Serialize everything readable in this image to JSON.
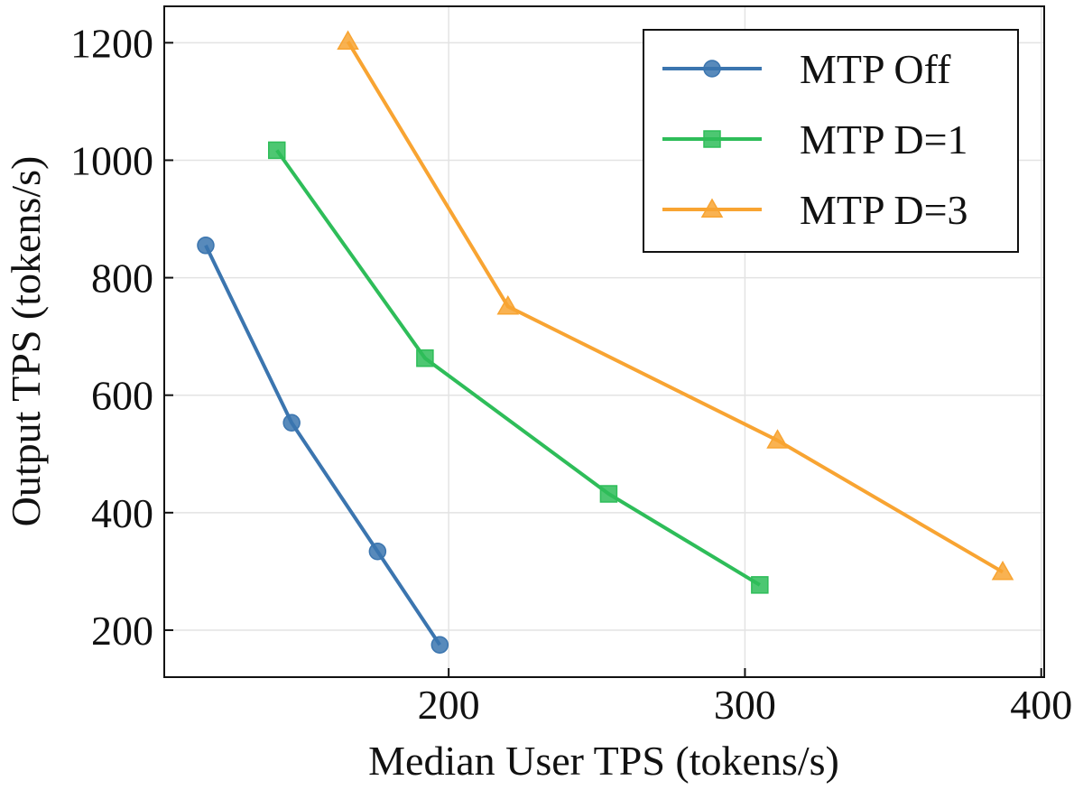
{
  "chart_data": {
    "type": "line",
    "title": "",
    "xlabel": "Median User TPS (tokens/s)",
    "ylabel": "Output TPS (tokens/s)",
    "xlim": [
      104,
      401
    ],
    "ylim": [
      120,
      1262
    ],
    "xticks": [
      200,
      300,
      400
    ],
    "yticks": [
      200,
      400,
      600,
      800,
      1000,
      1200
    ],
    "grid": true,
    "legend_position": "top-right",
    "series": [
      {
        "name": "MTP Off",
        "color": "#3b75af",
        "marker": "circle",
        "points": [
          [
            118,
            855
          ],
          [
            147,
            553
          ],
          [
            176,
            334
          ],
          [
            197,
            175
          ]
        ]
      },
      {
        "name": "MTP D=1",
        "color": "#2ebd59",
        "marker": "square",
        "points": [
          [
            142,
            1017
          ],
          [
            192,
            663
          ],
          [
            254,
            432
          ],
          [
            305,
            277
          ]
        ]
      },
      {
        "name": "MTP D=3",
        "color": "#f8a432",
        "marker": "triangle",
        "points": [
          [
            166,
            1202
          ],
          [
            220,
            751
          ],
          [
            311,
            523
          ],
          [
            387,
            299
          ]
        ]
      }
    ]
  }
}
